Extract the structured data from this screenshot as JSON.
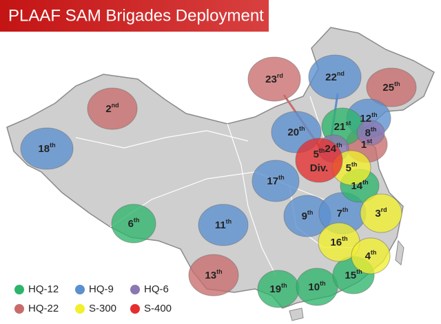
{
  "title": "PLAAF SAM Brigades Deployment",
  "legend": [
    {
      "name": "HQ-12",
      "color": "#2db56a",
      "brigades": [
        {
          "number": "21",
          "suffix": "st"
        },
        {
          "number": "14",
          "suffix": "th"
        },
        {
          "number": "6",
          "suffix": "th"
        },
        {
          "number": "19",
          "suffix": "th"
        },
        {
          "number": "10",
          "suffix": "th"
        },
        {
          "number": "15",
          "suffix": "th"
        }
      ]
    },
    {
      "name": "HQ-9",
      "color": "#5b8fd0",
      "brigades": [
        {
          "number": "22",
          "suffix": "nd"
        },
        {
          "number": "18",
          "suffix": "th"
        },
        {
          "number": "20",
          "suffix": "th"
        },
        {
          "number": "12",
          "suffix": "th"
        },
        {
          "number": "17",
          "suffix": "th"
        },
        {
          "number": "11",
          "suffix": "th"
        },
        {
          "number": "9",
          "suffix": "th"
        },
        {
          "number": "7",
          "suffix": "th"
        }
      ]
    },
    {
      "name": "HQ-6",
      "color": "#8a78b2",
      "brigades": [
        {
          "number": "24",
          "suffix": "th"
        },
        {
          "number": "8",
          "suffix": "th"
        }
      ]
    },
    {
      "name": "HQ-22",
      "color": "#c96b6b",
      "brigades": [
        {
          "number": "23",
          "suffix": "rd"
        },
        {
          "number": "25",
          "suffix": "th"
        },
        {
          "number": "2",
          "suffix": "nd"
        },
        {
          "number": "1",
          "suffix": "st"
        },
        {
          "number": "13",
          "suffix": "th"
        }
      ]
    },
    {
      "name": "S-300",
      "color": "#f2ef2e",
      "brigades": [
        {
          "number": "5",
          "suffix": "th"
        },
        {
          "number": "3",
          "suffix": "rd"
        },
        {
          "number": "16",
          "suffix": "th"
        },
        {
          "number": "4",
          "suffix": "th"
        }
      ]
    },
    {
      "name": "S-400",
      "color": "#e52e2e",
      "brigades": [
        {
          "number": "5",
          "suffix": "th",
          "note": "Div."
        }
      ]
    }
  ]
}
